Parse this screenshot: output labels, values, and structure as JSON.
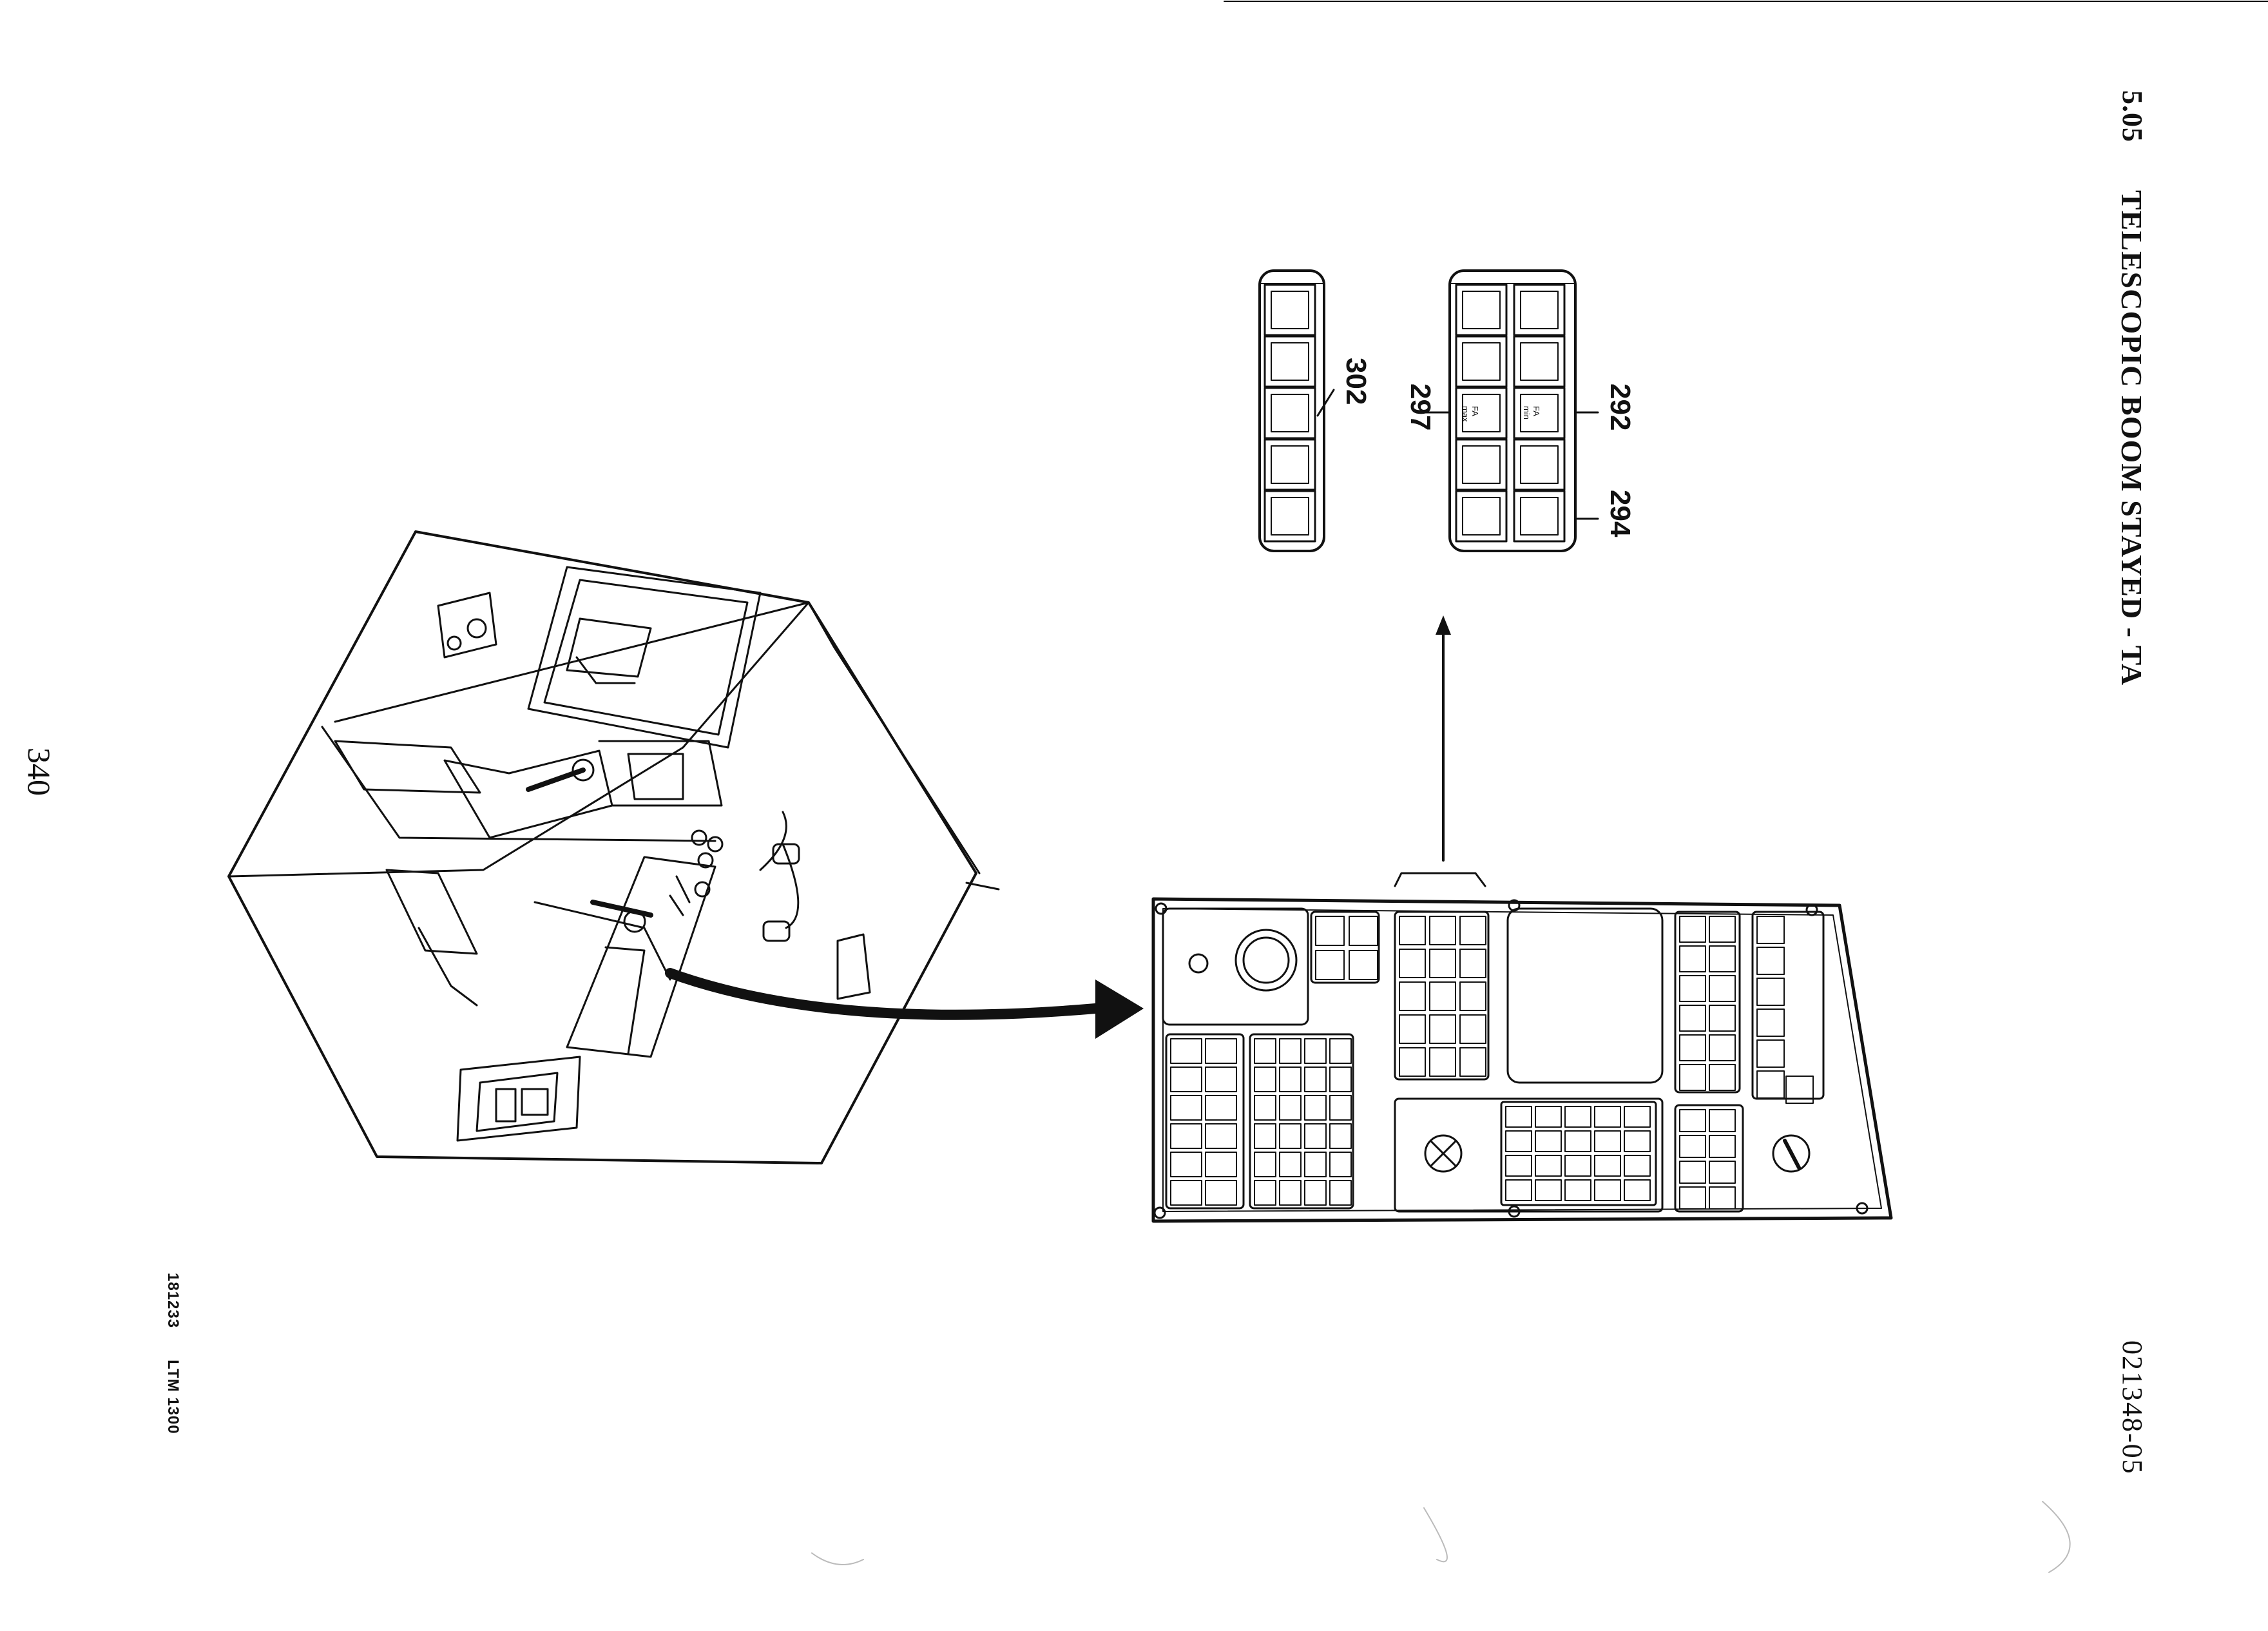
{
  "header": {
    "section": "5.05",
    "title": "TELESCOPIC BOOM STAYED - TA"
  },
  "document_number": "021348-05",
  "page_number": "340",
  "footer": {
    "code": "181233",
    "model": "LTM 1300"
  },
  "callouts": [
    "302",
    "297",
    "292",
    "294"
  ],
  "key_labels": {
    "fa": "FA",
    "max": "max",
    "min": "min"
  }
}
